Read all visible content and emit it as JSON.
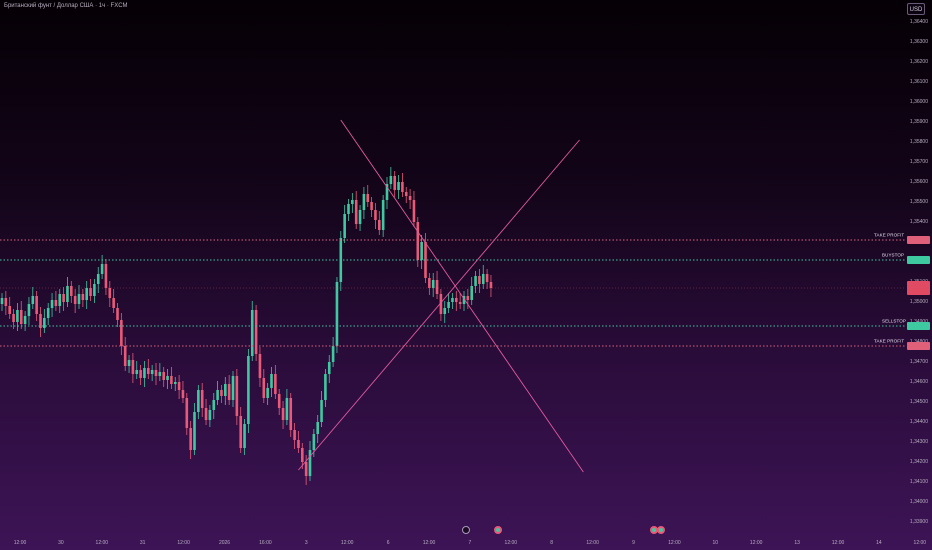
{
  "header": {
    "symbol_title": "Британский фунт / Доллар США · 1ч · FXCM",
    "currency_button": "USD"
  },
  "price_axis": {
    "labels": [
      "1,36400",
      "1,36300",
      "1,36200",
      "1,36100",
      "1,36000",
      "1,35900",
      "1,35800",
      "1,35700",
      "1,35600",
      "1,35500",
      "1,35400",
      "1,35300",
      "1,35200",
      "1,35100",
      "1,35000",
      "1,34900",
      "1,34800",
      "1,34700",
      "1,34600",
      "1,34500",
      "1,34400",
      "1,34300",
      "1,34200",
      "1,34100",
      "1,34000",
      "1,33900"
    ]
  },
  "time_axis": {
    "labels": [
      "12:00",
      "30",
      "12:00",
      "31",
      "12:00",
      "2026",
      "16:00",
      "3",
      "12:00",
      "6",
      "12:00",
      "7",
      "12:00",
      "8",
      "12:00",
      "9",
      "12:00",
      "10",
      "12:00",
      "13",
      "12:00",
      "14",
      "12:00"
    ]
  },
  "levels": {
    "take_profit_upper": {
      "label": "TAKE PROFIT",
      "price": 1.3531,
      "color": "#e0607a"
    },
    "buystop": {
      "label": "BUYSTOP",
      "price": 1.3521,
      "color": "#3ec9a0"
    },
    "sellstop": {
      "label": "SELLSTOP",
      "price": 1.3488,
      "color": "#3ec9a0"
    },
    "take_profit_lower": {
      "label": "TAKE PROFIT",
      "price": 1.3478,
      "color": "#e0607a"
    }
  },
  "current_price": {
    "color": "#e04a63"
  },
  "chart_data": {
    "type": "candlestick",
    "ylim": [
      1.3385,
      1.3648
    ],
    "y_ticks": [
      1.364,
      1.363,
      1.362,
      1.361,
      1.36,
      1.359,
      1.358,
      1.357,
      1.356,
      1.355,
      1.354,
      1.353,
      1.352,
      1.351,
      1.35,
      1.349,
      1.348,
      1.347,
      1.346,
      1.345,
      1.344,
      1.343,
      1.342,
      1.341,
      1.34,
      1.339
    ],
    "up_color": "#3ec9a0",
    "down_color": "#e85a78",
    "trendline_color": "#e05a9e",
    "candles_close": [
      1.3502,
      1.3498,
      1.3494,
      1.349,
      1.3496,
      1.3489,
      1.3493,
      1.3499,
      1.3503,
      1.3494,
      1.3487,
      1.3492,
      1.3497,
      1.3501,
      1.3498,
      1.3504,
      1.35,
      1.3508,
      1.3503,
      1.3499,
      1.3504,
      1.3501,
      1.3507,
      1.3503,
      1.3509,
      1.3514,
      1.3519,
      1.3507,
      1.3502,
      1.3497,
      1.3491,
      1.3478,
      1.3468,
      1.3471,
      1.3464,
      1.3466,
      1.3462,
      1.3467,
      1.3464,
      1.3466,
      1.3463,
      1.3465,
      1.3461,
      1.3463,
      1.3459,
      1.346,
      1.3456,
      1.3452,
      1.3437,
      1.3426,
      1.3445,
      1.3456,
      1.3447,
      1.3441,
      1.3446,
      1.3451,
      1.3456,
      1.3453,
      1.3459,
      1.3451,
      1.3463,
      1.3443,
      1.3427,
      1.3439,
      1.3473,
      1.3496,
      1.3474,
      1.3462,
      1.3452,
      1.3457,
      1.3464,
      1.3454,
      1.3447,
      1.3441,
      1.3452,
      1.3436,
      1.3431,
      1.3427,
      1.342,
      1.3413,
      1.3426,
      1.3434,
      1.344,
      1.3451,
      1.3464,
      1.347,
      1.3478,
      1.351,
      1.3532,
      1.3544,
      1.3549,
      1.3551,
      1.3539,
      1.3546,
      1.3554,
      1.355,
      1.3546,
      1.3541,
      1.3536,
      1.3551,
      1.3559,
      1.3563,
      1.3556,
      1.356,
      1.3555,
      1.3553,
      1.3551,
      1.354,
      1.3521,
      1.353,
      1.3512,
      1.3507,
      1.3511,
      1.3504,
      1.3494,
      1.3497,
      1.35,
      1.3502,
      1.35,
      1.3499,
      1.3503,
      1.3501,
      1.3508,
      1.3513,
      1.3509,
      1.3514,
      1.351,
      1.3507
    ],
    "candles_open_first": 1.3499,
    "trendlines": [
      {
        "from": {
          "bar": 88,
          "price": 1.3591
        },
        "to": {
          "bar": 151,
          "price": 1.3415
        }
      },
      {
        "from": {
          "bar": 77,
          "price": 1.3416
        },
        "to": {
          "bar": 150,
          "price": 1.3581
        }
      }
    ]
  }
}
